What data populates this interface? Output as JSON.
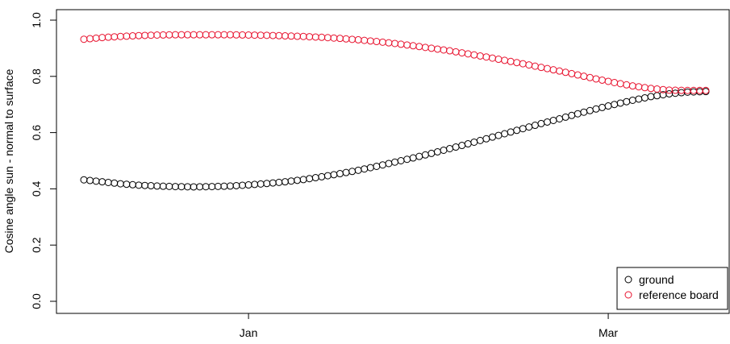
{
  "chart_data": {
    "type": "scatter",
    "title": "",
    "xlabel": "",
    "ylabel": "Cosine angle sun - normal to surface",
    "ylim": [
      0,
      1
    ],
    "yticks": [
      "0.0",
      "0.2",
      "0.4",
      "0.6",
      "0.8",
      "1.0"
    ],
    "xticks": [
      "Jan",
      "Mar"
    ],
    "x_dates_hint": "daily points from early December to mid-March",
    "grid": false,
    "legend_position": "bottom-right",
    "colors": {
      "ground": "#000000",
      "reference board": "#e8112d"
    },
    "series": [
      {
        "name": "ground",
        "color": "#000000",
        "x": [
          "Dec-05",
          "Dec-08",
          "Dec-11",
          "Dec-14",
          "Dec-17",
          "Dec-20",
          "Dec-23",
          "Dec-26",
          "Dec-29",
          "Jan-01",
          "Jan-04",
          "Jan-07",
          "Jan-10",
          "Jan-13",
          "Jan-16",
          "Jan-19",
          "Jan-22",
          "Jan-25",
          "Jan-28",
          "Jan-31",
          "Feb-03",
          "Feb-06",
          "Feb-09",
          "Feb-12",
          "Feb-15",
          "Feb-18",
          "Feb-21",
          "Feb-24",
          "Feb-27",
          "Mar-02",
          "Mar-05",
          "Mar-08",
          "Mar-11",
          "Mar-14",
          "Mar-17"
        ],
        "values": [
          0.432,
          0.425,
          0.418,
          0.413,
          0.41,
          0.408,
          0.407,
          0.408,
          0.41,
          0.414,
          0.419,
          0.425,
          0.433,
          0.443,
          0.454,
          0.466,
          0.48,
          0.495,
          0.51,
          0.526,
          0.543,
          0.56,
          0.578,
          0.596,
          0.614,
          0.632,
          0.649,
          0.667,
          0.684,
          0.7,
          0.715,
          0.728,
          0.738,
          0.744,
          0.746
        ]
      },
      {
        "name": "reference board",
        "color": "#e8112d",
        "x": [
          "Dec-05",
          "Dec-08",
          "Dec-11",
          "Dec-14",
          "Dec-17",
          "Dec-20",
          "Dec-23",
          "Dec-26",
          "Dec-29",
          "Jan-01",
          "Jan-04",
          "Jan-07",
          "Jan-10",
          "Jan-13",
          "Jan-16",
          "Jan-19",
          "Jan-22",
          "Jan-25",
          "Jan-28",
          "Jan-31",
          "Feb-03",
          "Feb-06",
          "Feb-09",
          "Feb-12",
          "Feb-15",
          "Feb-18",
          "Feb-21",
          "Feb-24",
          "Feb-27",
          "Mar-02",
          "Mar-05",
          "Mar-08",
          "Mar-11",
          "Mar-14",
          "Mar-17"
        ],
        "values": [
          0.932,
          0.938,
          0.942,
          0.945,
          0.947,
          0.948,
          0.948,
          0.948,
          0.948,
          0.947,
          0.946,
          0.944,
          0.942,
          0.939,
          0.935,
          0.93,
          0.924,
          0.917,
          0.909,
          0.9,
          0.891,
          0.88,
          0.869,
          0.857,
          0.845,
          0.832,
          0.819,
          0.805,
          0.791,
          0.778,
          0.766,
          0.757,
          0.751,
          0.75,
          0.75
        ]
      }
    ]
  }
}
